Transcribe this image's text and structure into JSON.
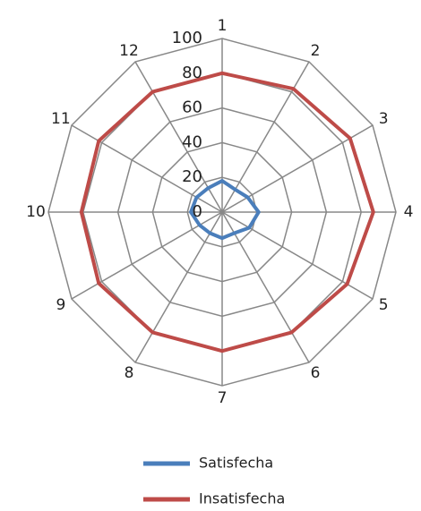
{
  "chart_data": {
    "type": "radar",
    "categories": [
      "1",
      "2",
      "3",
      "4",
      "5",
      "6",
      "7",
      "8",
      "9",
      "10",
      "11",
      "12"
    ],
    "series": [
      {
        "name": "Satisfecha",
        "color": "#4a7ebb",
        "values": [
          18,
          15,
          17,
          21,
          18,
          14,
          15,
          14,
          15,
          18,
          17,
          16
        ]
      },
      {
        "name": "Insatisfecha",
        "color": "#be4b48",
        "values": [
          80,
          82,
          85,
          87,
          83,
          80,
          80,
          80,
          82,
          81,
          82,
          80
        ]
      }
    ],
    "ylim": [
      0,
      100
    ],
    "yticks": [
      0,
      20,
      40,
      60,
      80,
      100
    ],
    "grid": true,
    "legend": "bottom"
  }
}
